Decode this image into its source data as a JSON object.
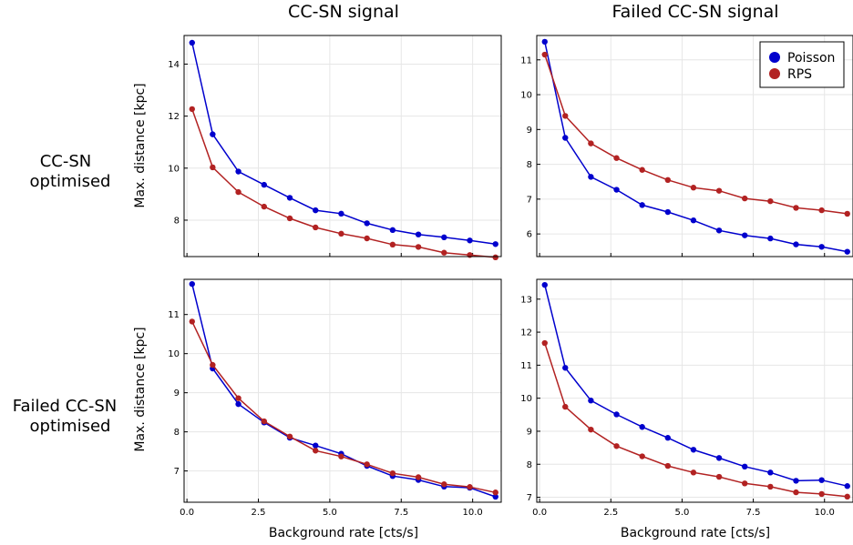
{
  "column_titles": [
    "CC-SN signal",
    "Failed CC-SN signal"
  ],
  "row_titles": [
    [
      "CC-SN",
      "optimised"
    ],
    [
      "Failed CC-SN",
      "optimised"
    ]
  ],
  "ylabel": "Max. distance [kpc]",
  "xlabel": "Background rate [cts/s]",
  "legend": {
    "placement": "top-right",
    "entries": [
      {
        "name": "Poisson",
        "color": "#0000cd"
      },
      {
        "name": "RPS",
        "color": "#b22222"
      }
    ]
  },
  "chart_data": [
    {
      "type": "line",
      "panel": "top-left",
      "x": [
        0.18,
        0.9,
        1.8,
        2.7,
        3.6,
        4.5,
        5.4,
        6.3,
        7.2,
        8.1,
        9.0,
        9.9,
        10.8
      ],
      "xlim": [
        -0.1,
        11.0
      ],
      "ylim": [
        6.6,
        15.1
      ],
      "xticks": [
        0.0,
        2.5,
        5.0,
        7.5,
        10.0
      ],
      "xtick_labels": [
        "",
        "",
        "",
        "",
        ""
      ],
      "yticks": [
        8,
        10,
        12,
        14
      ],
      "ytick_labels": [
        "8",
        "10",
        "12",
        "14"
      ],
      "series": [
        {
          "name": "Poisson",
          "color": "#0000cd",
          "values": [
            14.82,
            11.3,
            9.87,
            9.36,
            8.86,
            8.38,
            8.25,
            7.88,
            7.62,
            7.45,
            7.34,
            7.22,
            7.08
          ]
        },
        {
          "name": "RPS",
          "color": "#b22222",
          "values": [
            12.27,
            10.03,
            9.08,
            8.52,
            8.07,
            7.72,
            7.48,
            7.3,
            7.06,
            6.97,
            6.75,
            6.66,
            6.57
          ]
        }
      ]
    },
    {
      "type": "line",
      "panel": "top-right",
      "x": [
        0.18,
        0.9,
        1.8,
        2.7,
        3.6,
        4.5,
        5.4,
        6.3,
        7.2,
        8.1,
        9.0,
        9.9,
        10.8
      ],
      "xlim": [
        -0.1,
        11.0
      ],
      "ylim": [
        5.35,
        11.7
      ],
      "xticks": [
        0.0,
        2.5,
        5.0,
        7.5,
        10.0
      ],
      "xtick_labels": [
        "",
        "",
        "",
        "",
        ""
      ],
      "yticks": [
        6,
        7,
        8,
        9,
        10,
        11
      ],
      "ytick_labels": [
        "6",
        "7",
        "8",
        "9",
        "10",
        "11"
      ],
      "series": [
        {
          "name": "Poisson",
          "color": "#0000cd",
          "values": [
            11.52,
            8.76,
            7.64,
            7.27,
            6.83,
            6.63,
            6.39,
            6.1,
            5.96,
            5.87,
            5.7,
            5.63,
            5.49
          ]
        },
        {
          "name": "RPS",
          "color": "#b22222",
          "values": [
            11.15,
            9.39,
            8.6,
            8.18,
            7.84,
            7.55,
            7.33,
            7.24,
            7.02,
            6.94,
            6.75,
            6.68,
            6.58
          ]
        }
      ]
    },
    {
      "type": "line",
      "panel": "bottom-left",
      "x": [
        0.18,
        0.9,
        1.8,
        2.7,
        3.6,
        4.5,
        5.4,
        6.3,
        7.2,
        8.1,
        9.0,
        9.9,
        10.8
      ],
      "xlim": [
        -0.1,
        11.0
      ],
      "ylim": [
        6.2,
        11.9
      ],
      "xticks": [
        0.0,
        2.5,
        5.0,
        7.5,
        10.0
      ],
      "xtick_labels": [
        "0.0",
        "2.5",
        "5.0",
        "7.5",
        "10.0"
      ],
      "yticks": [
        7,
        8,
        9,
        10,
        11
      ],
      "ytick_labels": [
        "7",
        "8",
        "9",
        "10",
        "11"
      ],
      "series": [
        {
          "name": "Poisson",
          "color": "#0000cd",
          "values": [
            11.78,
            9.62,
            8.71,
            8.24,
            7.85,
            7.65,
            7.44,
            7.13,
            6.87,
            6.77,
            6.6,
            6.57,
            6.34
          ]
        },
        {
          "name": "RPS",
          "color": "#b22222",
          "values": [
            10.82,
            9.71,
            8.86,
            8.27,
            7.88,
            7.52,
            7.37,
            7.17,
            6.94,
            6.84,
            6.66,
            6.59,
            6.45
          ]
        }
      ]
    },
    {
      "type": "line",
      "panel": "bottom-right",
      "x": [
        0.18,
        0.9,
        1.8,
        2.7,
        3.6,
        4.5,
        5.4,
        6.3,
        7.2,
        8.1,
        9.0,
        9.9,
        10.8
      ],
      "xlim": [
        -0.1,
        11.0
      ],
      "ylim": [
        6.85,
        13.6
      ],
      "xticks": [
        0.0,
        2.5,
        5.0,
        7.5,
        10.0
      ],
      "xtick_labels": [
        "0.0",
        "2.5",
        "5.0",
        "7.5",
        "10.0"
      ],
      "yticks": [
        7,
        8,
        9,
        10,
        11,
        12,
        13
      ],
      "ytick_labels": [
        "7",
        "8",
        "9",
        "10",
        "11",
        "12",
        "13"
      ],
      "series": [
        {
          "name": "Poisson",
          "color": "#0000cd",
          "values": [
            13.43,
            10.92,
            9.93,
            9.51,
            9.13,
            8.8,
            8.44,
            8.19,
            7.93,
            7.75,
            7.5,
            7.52,
            7.34
          ]
        },
        {
          "name": "RPS",
          "color": "#b22222",
          "values": [
            11.67,
            9.74,
            9.05,
            8.55,
            8.24,
            7.95,
            7.75,
            7.62,
            7.42,
            7.32,
            7.15,
            7.1,
            7.02
          ]
        }
      ]
    }
  ]
}
